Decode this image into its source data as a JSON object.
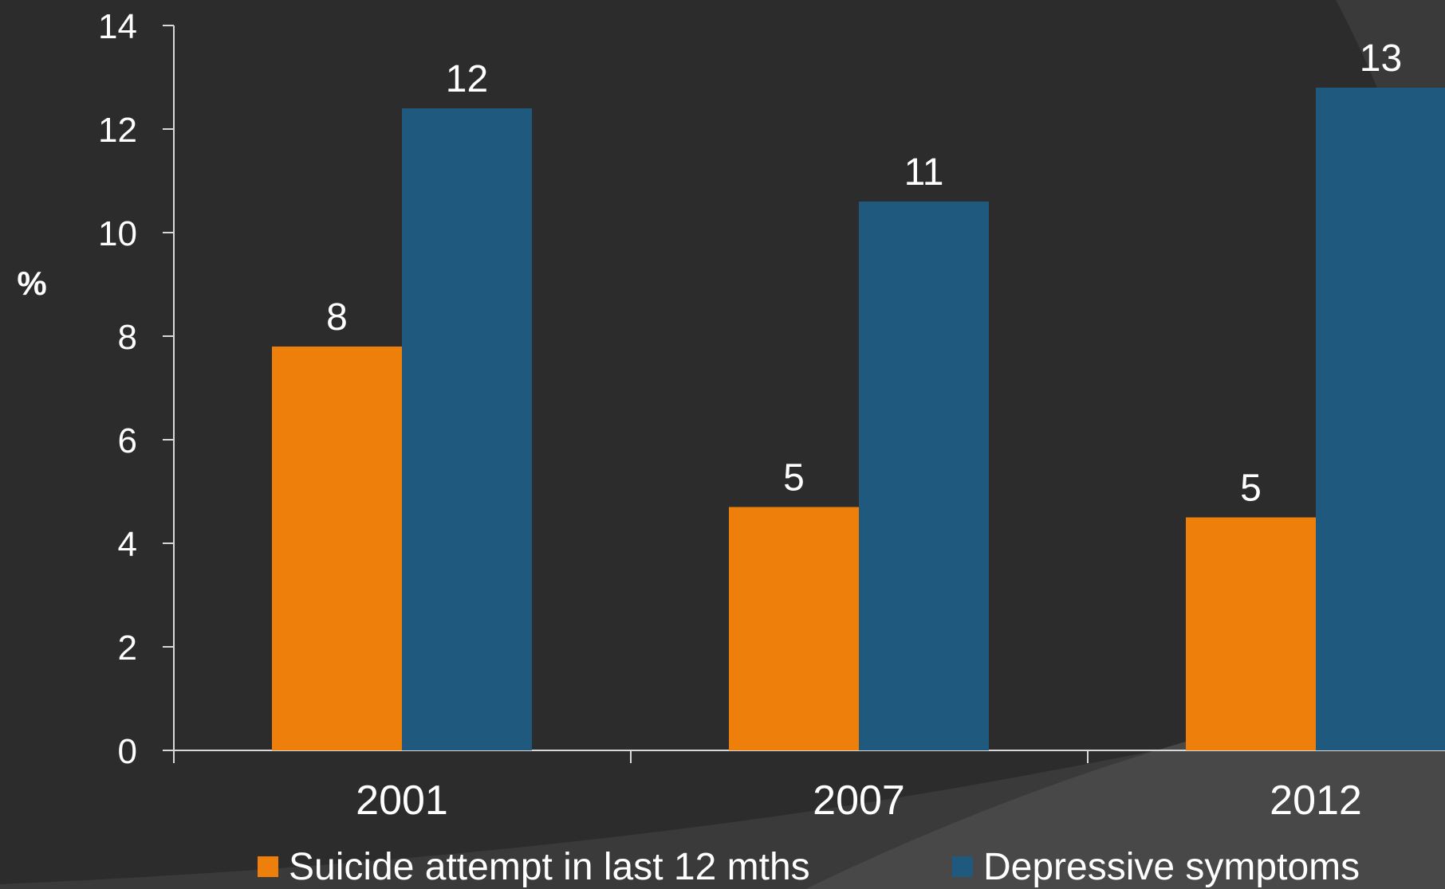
{
  "chart_data": {
    "type": "bar",
    "title": "",
    "xlabel": "",
    "ylabel": "%",
    "ylim": [
      0,
      14
    ],
    "yticks": [
      0,
      2,
      4,
      6,
      8,
      10,
      12,
      14
    ],
    "categories": [
      "2001",
      "2007",
      "2012"
    ],
    "series": [
      {
        "name": "Suicide attempt in last 12 mths",
        "color": "#ee7f0b",
        "values": [
          7.8,
          4.7,
          4.5
        ],
        "labels": [
          "8",
          "5",
          "5"
        ]
      },
      {
        "name": "Depressive symptoms",
        "color": "#1f5a7e",
        "values": [
          12.4,
          10.6,
          12.8
        ],
        "labels": [
          "12",
          "11",
          "13"
        ]
      }
    ],
    "grid": false,
    "legend_position": "bottom"
  },
  "colors": {
    "background": "#2c2c2c",
    "background_swoosh": "#4a4a4a",
    "axis": "#d9d9d9",
    "text": "#ffffff"
  }
}
